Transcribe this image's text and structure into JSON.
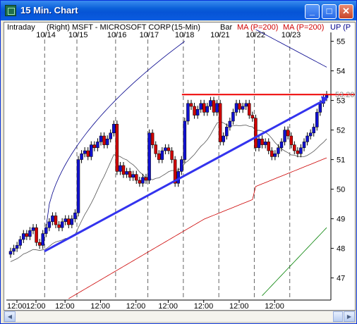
{
  "window": {
    "title": "15 Min. Chart",
    "minimize_glyph": "_",
    "maximize_glyph": "□",
    "close_glyph": "✕",
    "icon": "chart-app-icon"
  },
  "header": {
    "interval": "Intraday",
    "axis_side": "(Right)",
    "symbol": "MSFT - MICROSOFT CORP",
    "period": "(15-Min)",
    "style": "Bar",
    "ma1_label": "MA (P=200)",
    "ma2_label": "MA (P=200)",
    "ma3_label": "UP (P"
  },
  "colors": {
    "up_bar": "#1010d0",
    "down_bar": "#d00000",
    "ma_black": "#555555",
    "ma_red": "#cc0000",
    "ma_green": "#008000",
    "ma_navy": "#00008b",
    "trendline": "#3333ee",
    "resistance": "#ee0000"
  },
  "chart_data": {
    "type": "candlestick",
    "title": "MSFT - MICROSOFT CORP (15-Min)",
    "date_labels": [
      "10/14",
      "10/15",
      "10/16",
      "10/17",
      "10/18",
      "10/21",
      "10/22",
      "10/23"
    ],
    "time_labels": [
      "12:00",
      "12:00",
      "12:00",
      "12:00",
      "12:00",
      "12:00",
      "12:00",
      "12:00",
      "12:00"
    ],
    "y_ticks": [
      47,
      48,
      49,
      50,
      51,
      52,
      53,
      54,
      55
    ],
    "ylim": [
      46.3,
      55.3
    ],
    "resistance_label": "53.20",
    "resistance_level": 53.2,
    "trendline": [
      [
        0,
        47.9
      ],
      [
        98,
        53.0
      ]
    ],
    "closes": [
      47.9,
      48.0,
      48.1,
      48.3,
      48.5,
      48.4,
      48.6,
      48.7,
      48.2,
      48.1,
      48.5,
      48.7,
      48.9,
      49.1,
      48.8,
      48.7,
      48.9,
      49.0,
      48.8,
      49.0,
      49.2,
      51.0,
      51.2,
      51.3,
      51.1,
      51.5,
      51.4,
      51.6,
      51.8,
      51.5,
      51.7,
      51.9,
      52.2,
      50.6,
      50.8,
      50.5,
      50.6,
      50.4,
      50.5,
      50.3,
      50.2,
      50.4,
      50.3,
      51.9,
      51.5,
      51.2,
      51.0,
      51.3,
      51.4,
      51.3,
      51.0,
      50.2,
      50.6,
      51.0,
      52.3,
      52.9,
      52.8,
      52.5,
      52.7,
      52.9,
      52.6,
      52.8,
      53.0,
      52.6,
      52.9,
      51.6,
      51.8,
      52.1,
      52.3,
      52.6,
      52.9,
      52.7,
      52.8,
      52.9,
      52.5,
      52.4,
      51.4,
      51.7,
      51.5,
      51.6,
      51.3,
      51.1,
      51.2,
      51.4,
      51.6,
      52.0,
      51.8,
      51.5,
      51.3,
      51.2,
      51.4,
      51.6,
      51.8,
      51.9,
      52.1,
      52.6,
      52.9,
      53.1,
      53.2
    ]
  }
}
